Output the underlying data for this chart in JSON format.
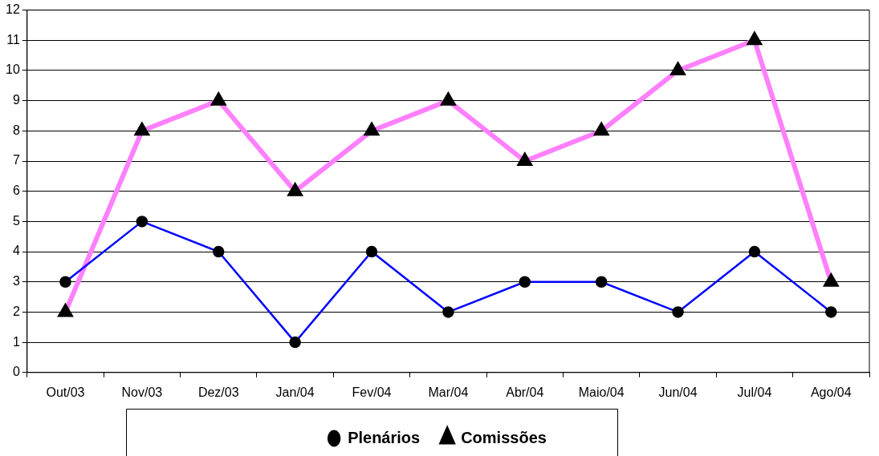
{
  "chart_data": {
    "type": "line",
    "categories": [
      "Out/03",
      "Nov/03",
      "Dez/03",
      "Jan/04",
      "Fev/04",
      "Mar/04",
      "Abr/04",
      "Maio/04",
      "Jun/04",
      "Jul/04",
      "Ago/04"
    ],
    "ylim": [
      0,
      12
    ],
    "yticks": [
      0,
      1,
      2,
      3,
      4,
      5,
      6,
      7,
      8,
      9,
      10,
      11,
      12
    ],
    "grid": "y",
    "legend": "bottom",
    "series": [
      {
        "name": "Plenários",
        "color": "#0000ff",
        "marker": "circle",
        "values": [
          3,
          5,
          4,
          1,
          4,
          2,
          3,
          3,
          2,
          4,
          2
        ]
      },
      {
        "name": "Comissões",
        "color": "#ff80ff",
        "marker": "triangle",
        "values": [
          2,
          8,
          9,
          6,
          8,
          9,
          7,
          8,
          10,
          11,
          3
        ]
      }
    ]
  }
}
